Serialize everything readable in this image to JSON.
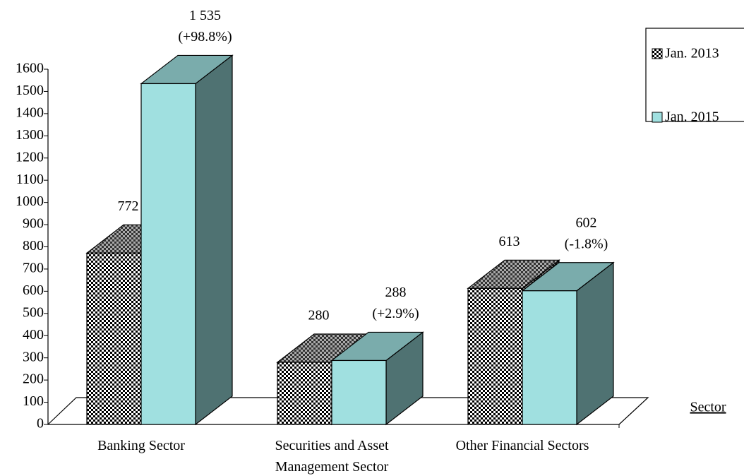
{
  "chart_data": {
    "type": "bar3d",
    "x_label": "Sector",
    "categories": [
      "Banking Sector",
      "Securities and Asset Management Sector",
      "Other Financial Sectors"
    ],
    "series": [
      {
        "name": "Jan. 2013",
        "color": "checker",
        "values": [
          772,
          280,
          613
        ]
      },
      {
        "name": "Jan. 2015",
        "color": "#a0e0e0",
        "values": [
          1535,
          288,
          602
        ],
        "value_labels": [
          [
            "1 535",
            "(+98.8%)"
          ],
          [
            "288",
            "(+2.9%)"
          ],
          [
            "602",
            "(-1.8%)"
          ]
        ]
      }
    ],
    "ylim": [
      0,
      1600
    ],
    "yticks": [
      0,
      100,
      200,
      300,
      400,
      500,
      600,
      700,
      800,
      900,
      1000,
      1100,
      1200,
      1300,
      1400,
      1500,
      1600
    ],
    "legend": "top-right"
  }
}
